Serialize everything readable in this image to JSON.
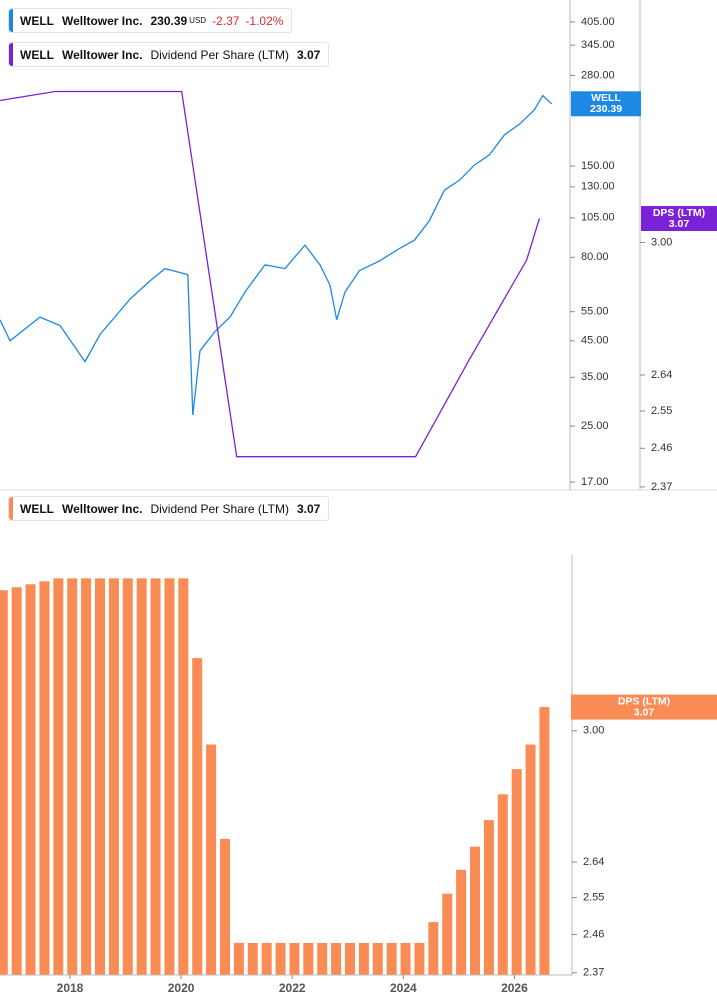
{
  "chart_data": [
    {
      "type": "line",
      "log_scale": true,
      "xlim": [
        2016.74,
        2027.0
      ],
      "ylim": [
        16.1,
        471
      ],
      "yticks": [
        {
          "value": 405,
          "label": "405.00"
        },
        {
          "value": 345,
          "label": "345.00"
        },
        {
          "value": 280,
          "label": "280.00"
        },
        {
          "value": 150,
          "label": "150.00"
        },
        {
          "value": 130,
          "label": "130.00"
        },
        {
          "value": 105,
          "label": "105.00"
        },
        {
          "value": 80,
          "label": "80.00"
        },
        {
          "value": 55,
          "label": "55.00"
        },
        {
          "value": 45,
          "label": "45.00"
        },
        {
          "value": 35,
          "label": "35.00"
        },
        {
          "value": 25,
          "label": "25.00"
        },
        {
          "value": 17,
          "label": "17.00"
        }
      ],
      "y2lim": [
        2.363,
        3.79
      ],
      "y2ticks": [
        {
          "value": 3,
          "label": "3.00"
        },
        2.64,
        2.55,
        2.46,
        2.37
      ],
      "series": [
        {
          "ticker": "WELL",
          "name": "Welltower Inc.",
          "currency": "USD",
          "change": -2.37,
          "change_pct": {
            "value": -1.02,
            "label": "-1.02%"
          },
          "tag": "WELL",
          "color": "#1e88e5",
          "x": [
            2016.74,
            2016.92,
            2017.46,
            2017.82,
            2018.27,
            2018.54,
            2019.08,
            2019.44,
            2019.71,
            2020.12,
            2020.21,
            2020.34,
            2020.61,
            2020.88,
            2021.15,
            2021.51,
            2021.87,
            2022.23,
            2022.5,
            2022.68,
            2022.8,
            2022.95,
            2023.21,
            2023.57,
            2023.93,
            2024.2,
            2024.47,
            2024.74,
            2025.01,
            2025.28,
            2025.55,
            2025.82,
            2026.09,
            2026.36,
            2026.51,
            2026.67
          ],
          "values": [
            52,
            45,
            53,
            50,
            39,
            47,
            60,
            68,
            74,
            71,
            27,
            42,
            48,
            53,
            63,
            76,
            74,
            87,
            76,
            66,
            52,
            63,
            73,
            78,
            85,
            90,
            103,
            127,
            136,
            151,
            162,
            186,
            200,
            221,
            244,
            230.39
          ]
        },
        {
          "ticker": "WELL",
          "name": "Welltower Inc.",
          "metric": "Dividend Per Share (LTM)",
          "tag": "DPS (LTM)",
          "color": "#7b22d6",
          "axis": "y2",
          "x": [
            2016.74,
            2017.73,
            2020.01,
            2021.0,
            2024.22,
            2025.19,
            2026.22,
            2026.45
          ],
          "values": [
            3.44,
            3.47,
            3.47,
            2.44,
            2.44,
            2.68,
            2.95,
            3.07
          ]
        }
      ]
    },
    {
      "type": "bar",
      "log_scale": true,
      "xlim": [
        2016.74,
        2027.0
      ],
      "xticks": [
        2018,
        2020,
        2022,
        2024,
        2026
      ],
      "ylim": [
        2.365,
        3.56
      ],
      "yticks": [
        {
          "value": 3,
          "label": "3.00"
        },
        2.64,
        2.55,
        2.46,
        2.37
      ],
      "series": [
        {
          "ticker": "WELL",
          "name": "Welltower Inc.",
          "metric": "Dividend Per Share (LTM)",
          "tag": "DPS (LTM)",
          "color": "#f98c55",
          "x": [
            2016.79,
            2017.04,
            2017.29,
            2017.54,
            2017.79,
            2018.04,
            2018.29,
            2018.54,
            2018.79,
            2019.04,
            2019.29,
            2019.54,
            2019.79,
            2020.04,
            2020.29,
            2020.54,
            2020.79,
            2021.04,
            2021.29,
            2021.54,
            2021.79,
            2022.04,
            2022.29,
            2022.54,
            2022.79,
            2023.04,
            2023.29,
            2023.54,
            2023.79,
            2024.04,
            2024.29,
            2024.54,
            2024.79,
            2025.04,
            2025.29,
            2025.54,
            2025.79,
            2026.04,
            2026.29,
            2026.54
          ],
          "values": [
            3.44,
            3.45,
            3.46,
            3.47,
            3.48,
            3.48,
            3.48,
            3.48,
            3.48,
            3.48,
            3.48,
            3.48,
            3.48,
            3.48,
            3.22,
            2.96,
            2.7,
            2.44,
            2.44,
            2.44,
            2.44,
            2.44,
            2.44,
            2.44,
            2.44,
            2.44,
            2.44,
            2.44,
            2.44,
            2.44,
            2.44,
            2.49,
            2.56,
            2.62,
            2.68,
            2.75,
            2.82,
            2.89,
            2.96,
            3.07
          ]
        }
      ]
    }
  ]
}
